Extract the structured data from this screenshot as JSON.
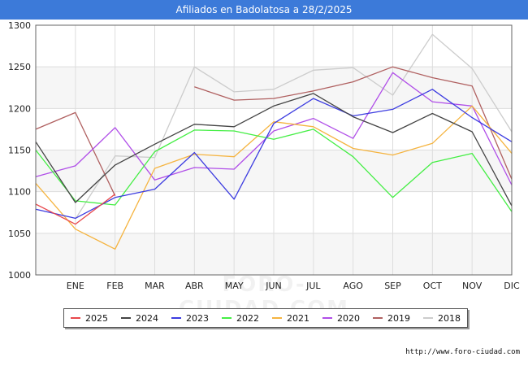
{
  "header": {
    "title": "Afiliados en Badolatosa a 28/2/2025"
  },
  "watermark": "FORO-CIUDAD.COM",
  "source": "http://www.foro-ciudad.com",
  "chart_data": {
    "type": "line",
    "title": "Afiliados en Badolatosa a 28/2/2025",
    "categories": [
      "",
      "ENE",
      "FEB",
      "MAR",
      "ABR",
      "MAY",
      "JUN",
      "JUL",
      "AGO",
      "SEP",
      "OCT",
      "NOV",
      "DIC"
    ],
    "ylim": [
      1000,
      1300
    ],
    "yticks": [
      1000,
      1050,
      1100,
      1150,
      1200,
      1250,
      1300
    ],
    "grid": true,
    "legend_position": "bottom",
    "series": [
      {
        "name": "2025",
        "color": "#e8474b",
        "values": [
          1085,
          1061,
          1097,
          null,
          null,
          null,
          null,
          null,
          null,
          null,
          null,
          null,
          null
        ]
      },
      {
        "name": "2024",
        "color": "#444444",
        "values": [
          1160,
          1087,
          1132,
          1157,
          1181,
          1178,
          1203,
          1218,
          1190,
          1171,
          1194,
          1172,
          1083
        ]
      },
      {
        "name": "2023",
        "color": "#3c3ce0",
        "values": [
          1079,
          1068,
          1093,
          1103,
          1147,
          1091,
          1182,
          1212,
          1191,
          1199,
          1223,
          1189,
          1160
        ]
      },
      {
        "name": "2022",
        "color": "#44ee44",
        "values": [
          1150,
          1089,
          1084,
          1148,
          1174,
          1173,
          1163,
          1175,
          1142,
          1093,
          1135,
          1146,
          1076
        ]
      },
      {
        "name": "2021",
        "color": "#f5b440",
        "values": [
          1110,
          1055,
          1031,
          1128,
          1145,
          1142,
          1184,
          1178,
          1152,
          1144,
          1158,
          1203,
          1146
        ]
      },
      {
        "name": "2020",
        "color": "#b04ee8",
        "values": [
          1118,
          1131,
          1177,
          1114,
          1129,
          1127,
          1173,
          1188,
          1164,
          1243,
          1208,
          1203,
          1108
        ]
      },
      {
        "name": "2019",
        "color": "#b06060",
        "values": [
          1175,
          1195,
          1095,
          null,
          1226,
          1210,
          1212,
          1221,
          1232,
          1250,
          1237,
          1227,
          1115
        ]
      },
      {
        "name": "2018",
        "color": "#cccccc",
        "values": [
          null,
          1067,
          1143,
          1141,
          1250,
          1220,
          1223,
          1246,
          1249,
          1216,
          1289,
          1248,
          1172
        ]
      }
    ]
  }
}
